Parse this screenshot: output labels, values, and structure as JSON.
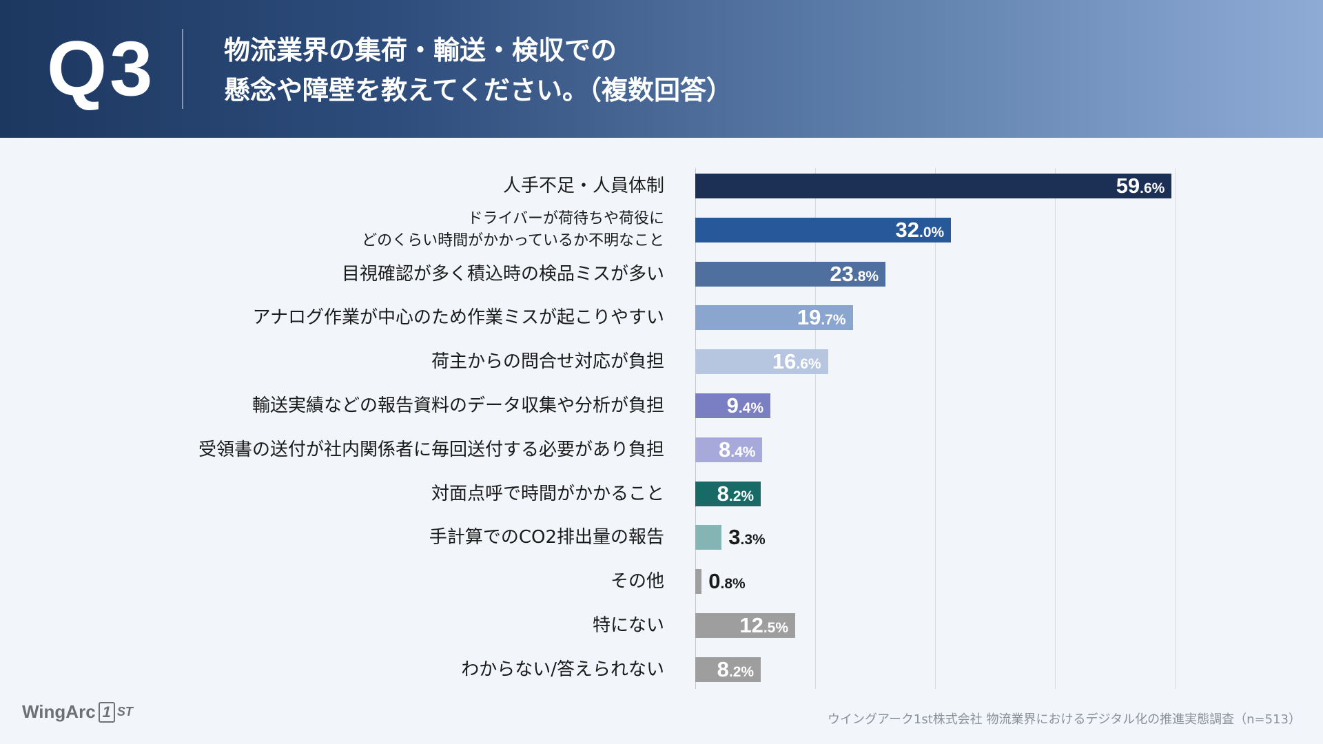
{
  "header": {
    "question_number": "Q3",
    "question_line1": "物流業界の集荷・輸送・検収での",
    "question_line2": "懸念や障壁を教えてください。（複数回答）"
  },
  "chart_data": {
    "type": "bar",
    "orientation": "horizontal",
    "unit": "%",
    "xlim": [
      0,
      60
    ],
    "grid": true,
    "categories": [
      [
        "人手不足・人員体制"
      ],
      [
        "ドライバーが荷待ちや荷役に",
        "どのくらい時間がかかっているか不明なこと"
      ],
      [
        "目視確認が多く積込時の検品ミスが多い"
      ],
      [
        "アナログ作業が中心のため作業ミスが起こりやすい"
      ],
      [
        "荷主からの問合せ対応が負担"
      ],
      [
        "輸送実績などの報告資料のデータ収集や分析が負担"
      ],
      [
        "受領書の送付が社内関係者に毎回送付する必要があり負担"
      ],
      [
        "対面点呼で時間がかかること"
      ],
      [
        "手計算でのCO2排出量の報告"
      ],
      [
        "その他"
      ],
      [
        "特にない"
      ],
      [
        "わからない/答えられない"
      ]
    ],
    "values": [
      59.6,
      32.0,
      23.8,
      19.7,
      16.6,
      9.4,
      8.4,
      8.2,
      3.3,
      0.8,
      12.5,
      8.2
    ],
    "value_labels_int": [
      "59",
      "32",
      "23",
      "19",
      "16",
      "9",
      "8",
      "8",
      "3",
      "0",
      "12",
      "8"
    ],
    "value_labels_dec": [
      ".6%",
      ".0%",
      ".8%",
      ".7%",
      ".6%",
      ".4%",
      ".4%",
      ".2%",
      ".3%",
      ".8%",
      ".5%",
      ".2%"
    ],
    "colors": [
      "#1c2f55",
      "#27589a",
      "#4f709e",
      "#8aa6cf",
      "#b6c6e1",
      "#7a7fc4",
      "#a7a9da",
      "#176a66",
      "#84b5b4",
      "#9e9e9e",
      "#9e9e9e",
      "#9e9e9e"
    ]
  },
  "footer": {
    "logo_text": "WingArc",
    "logo_mark": "1",
    "logo_suffix": "ST",
    "source": "ウイングアーク1st株式会社 物流業界におけるデジタル化の推進実態調査（n=513）"
  }
}
